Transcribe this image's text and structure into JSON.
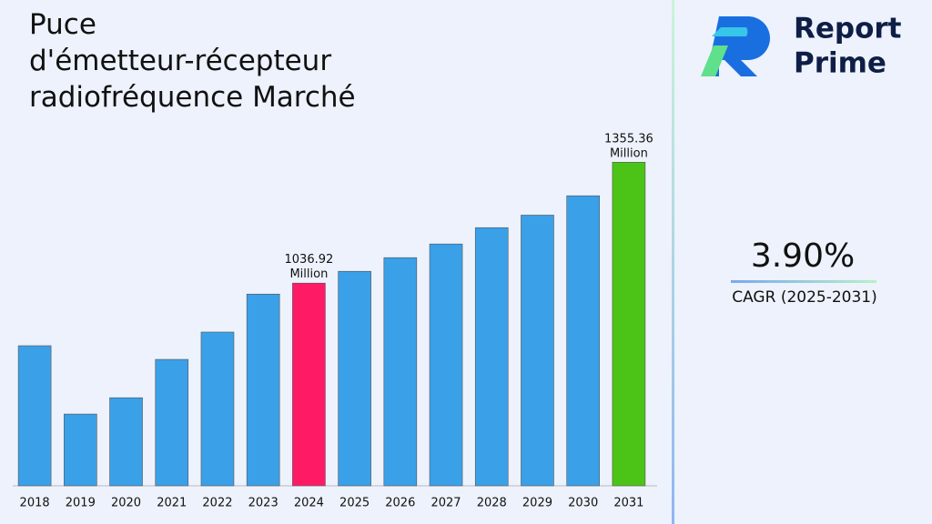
{
  "chart_data": {
    "type": "bar",
    "title": "Puce d'émetteur-récepteur radiofréquence Marché",
    "categories": [
      "2018",
      "2019",
      "2020",
      "2021",
      "2022",
      "2023",
      "2024",
      "2025",
      "2026",
      "2027",
      "2028",
      "2029",
      "2030",
      "2031"
    ],
    "values": [
      872,
      692,
      735,
      836,
      908,
      1008,
      1036.92,
      1068,
      1104,
      1140,
      1183,
      1216,
      1267,
      1355.36
    ],
    "value_labels": [
      null,
      null,
      null,
      null,
      null,
      null,
      "1036.92 Million",
      null,
      null,
      null,
      null,
      null,
      null,
      "1355.36 Million"
    ],
    "colors": [
      "#3aa0e8",
      "#3aa0e8",
      "#3aa0e8",
      "#3aa0e8",
      "#3aa0e8",
      "#3aa0e8",
      "#ff1a66",
      "#3aa0e8",
      "#3aa0e8",
      "#3aa0e8",
      "#3aa0e8",
      "#3aa0e8",
      "#3aa0e8",
      "#4cc417"
    ],
    "ylim": [
      503,
      1440
    ]
  },
  "brand": {
    "line1": "Report",
    "line2": "Prime"
  },
  "cagr": {
    "value": "3.90%",
    "label": "CAGR (2025-2031)"
  }
}
